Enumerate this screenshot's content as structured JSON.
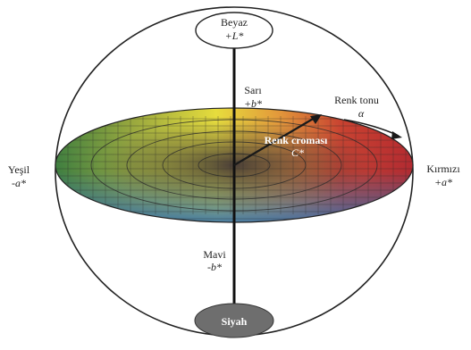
{
  "top_pole": {
    "name": "Beyaz",
    "axis": "+L*"
  },
  "bottom_pole": {
    "name": "Siyah"
  },
  "yellow_axis": {
    "name": "Sarı",
    "axis": "+b*"
  },
  "blue_axis": {
    "name": "Mavi",
    "axis": "-b*"
  },
  "green_axis": {
    "name": "Yeşil",
    "axis": "-a*"
  },
  "red_axis": {
    "name": "Kırmızı",
    "axis": "+a*"
  },
  "hue": {
    "name": "Renk tonu",
    "symbol": "α"
  },
  "chroma": {
    "name": "Renk croması",
    "symbol": "C*"
  },
  "colors": {
    "outline": "#222222",
    "pole_dark": "#6e6e6e",
    "red": "#b8262a",
    "yellow": "#e6dc3c",
    "green": "#3f7f3a",
    "blue": "#2f6fb4",
    "center": "#3a2f36"
  }
}
